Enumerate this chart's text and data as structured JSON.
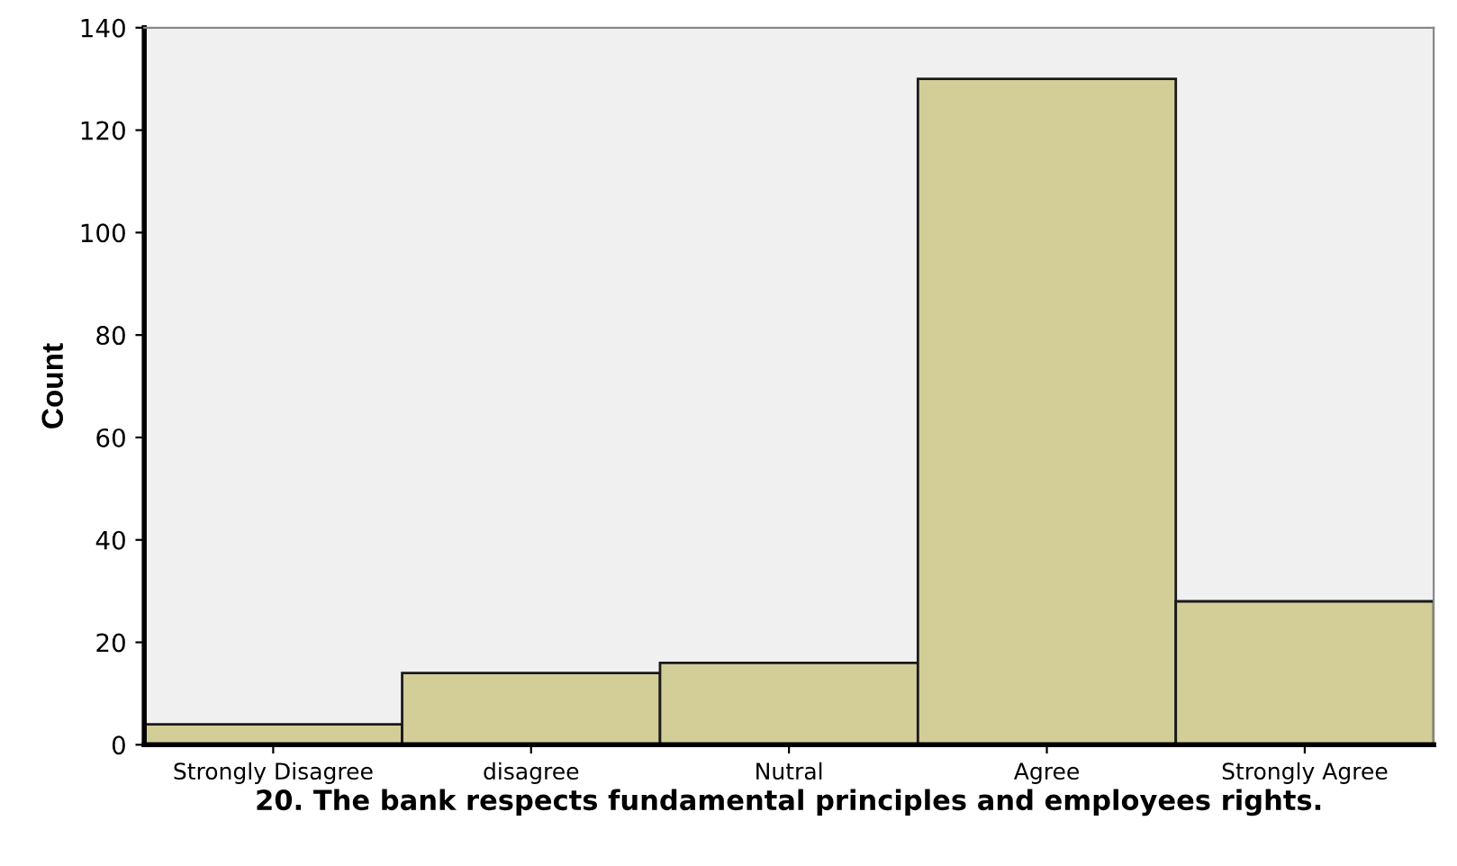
{
  "chart_data": {
    "type": "bar",
    "xlabel": "20. The bank respects fundamental principles and employees rights.",
    "ylabel": "Count",
    "categories": [
      "Strongly Disagree",
      "disagree",
      "Nutral",
      "Agree",
      "Strongly Agree"
    ],
    "values": [
      4,
      14,
      16,
      130,
      28
    ],
    "color": "#d3cd98",
    "ylim": [
      0,
      140
    ],
    "yticks": [
      0,
      20,
      40,
      60,
      80,
      100,
      120,
      140
    ],
    "grid": false
  }
}
